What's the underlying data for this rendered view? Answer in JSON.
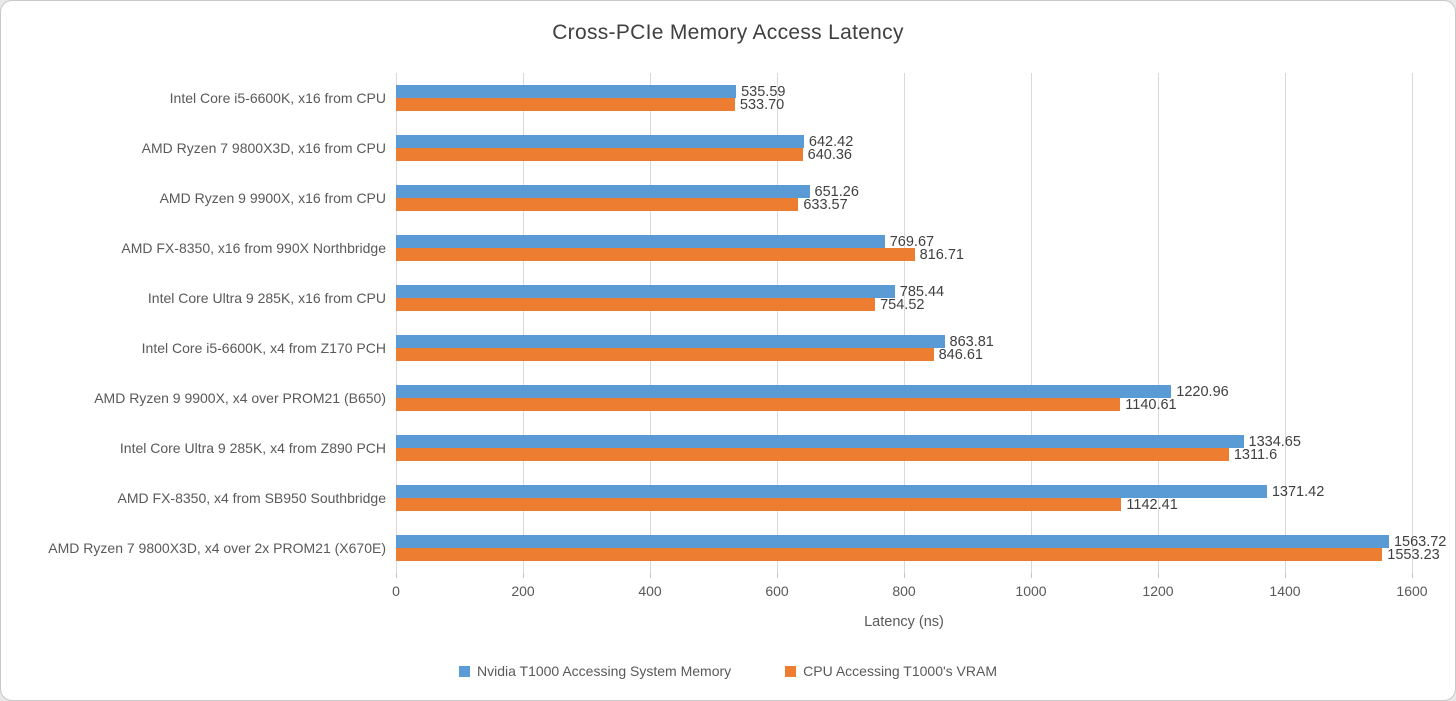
{
  "chart_data": {
    "type": "bar",
    "orientation": "horizontal",
    "title": "Cross-PCIe Memory Access Latency",
    "xlabel": "Latency (ns)",
    "xlim": [
      0,
      1600
    ],
    "x_ticks": [
      0,
      200,
      400,
      600,
      800,
      1000,
      1200,
      1400,
      1600
    ],
    "grid": true,
    "legend_position": "bottom",
    "categories": [
      "Intel Core i5-6600K, x16 from CPU",
      "AMD Ryzen 7 9800X3D, x16 from CPU",
      "AMD Ryzen 9 9900X, x16 from CPU",
      "AMD FX-8350, x16 from 990X Northbridge",
      "Intel Core Ultra 9 285K, x16 from CPU",
      "Intel Core i5-6600K, x4 from Z170 PCH",
      "AMD Ryzen 9 9900X, x4 over PROM21 (B650)",
      "Intel Core Ultra 9 285K, x4 from Z890 PCH",
      "AMD FX-8350, x4 from SB950 Southbridge",
      "AMD Ryzen 7 9800X3D, x4 over 2x PROM21 (X670E)"
    ],
    "series": [
      {
        "name": "Nvidia T1000 Accessing System Memory",
        "color": "#5B9BD5",
        "values": [
          535.59,
          642.42,
          651.26,
          769.67,
          785.44,
          863.81,
          1220.96,
          1334.65,
          1371.42,
          1563.72
        ],
        "labels": [
          "535.59",
          "642.42",
          "651.26",
          "769.67",
          "785.44",
          "863.81",
          "1220.96",
          "1334.65",
          "1371.42",
          "1563.72"
        ]
      },
      {
        "name": "CPU Accessing T1000's VRAM",
        "color": "#ED7D31",
        "values": [
          533.7,
          640.36,
          633.57,
          816.71,
          754.52,
          846.61,
          1140.61,
          1311.6,
          1142.41,
          1553.23
        ],
        "labels": [
          "533.70",
          "640.36",
          "633.57",
          "816.71",
          "754.52",
          "846.61",
          "1140.61",
          "1311.6",
          "1142.41",
          "1553.23"
        ]
      }
    ],
    "colors": {
      "gridline": "#d9d9d9",
      "axis_text": "#595959",
      "data_label_text": "#404040",
      "title_text": "#404040"
    }
  }
}
